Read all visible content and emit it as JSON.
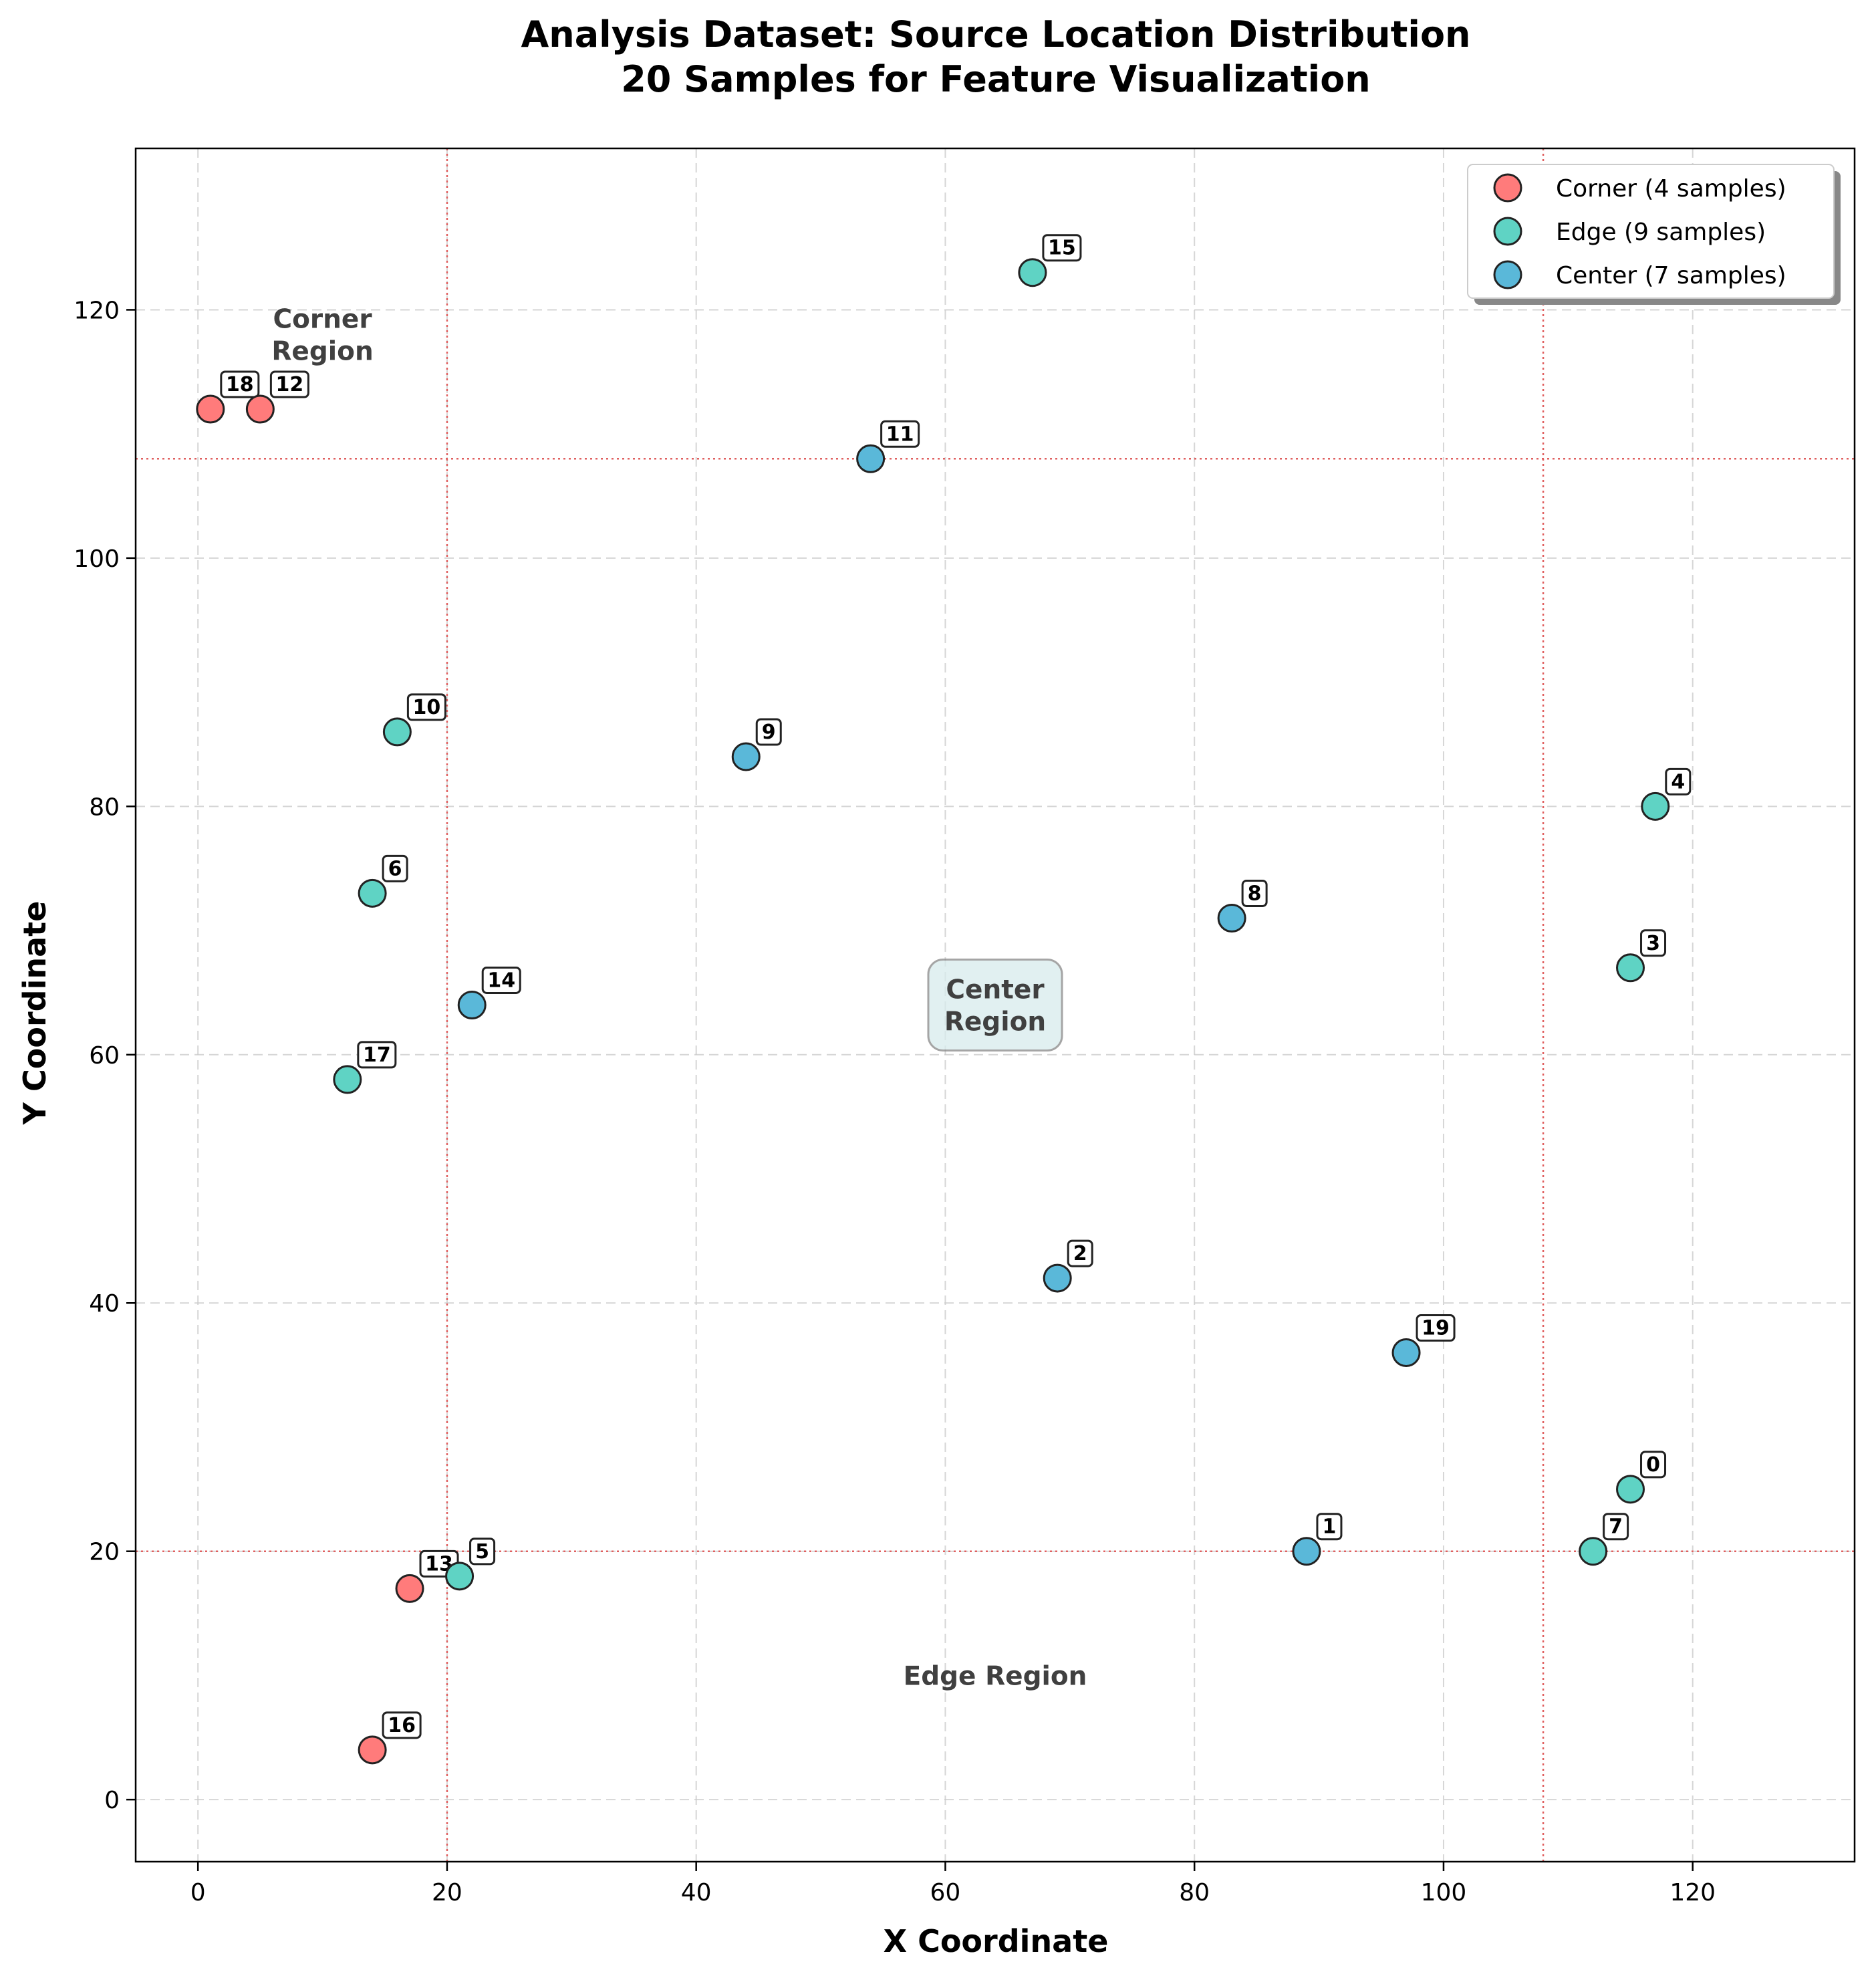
{
  "chart_data": {
    "type": "scatter",
    "title_line1": "Analysis Dataset: Source Location Distribution",
    "title_line2": "20 Samples for Feature Visualization",
    "xlabel": "X Coordinate",
    "ylabel": "Y Coordinate",
    "xlim": [
      -5,
      133
    ],
    "ylim": [
      -5,
      133
    ],
    "xticks": [
      0,
      20,
      40,
      60,
      80,
      100,
      120
    ],
    "yticks": [
      0,
      20,
      40,
      60,
      80,
      100,
      120
    ],
    "grid": true,
    "legend_position": "top-right",
    "boundaries": {
      "x": [
        20,
        108
      ],
      "y": [
        20,
        108
      ],
      "color": "#e06060"
    },
    "series": [
      {
        "name": "Corner (4 samples)",
        "color": "#ff7b7b",
        "points": [
          {
            "id": "18",
            "x": 1,
            "y": 112
          },
          {
            "id": "12",
            "x": 5,
            "y": 112
          },
          {
            "id": "13",
            "x": 17,
            "y": 17
          },
          {
            "id": "16",
            "x": 14,
            "y": 4
          }
        ]
      },
      {
        "name": "Edge (9 samples)",
        "color": "#5fd3c4",
        "points": [
          {
            "id": "15",
            "x": 67,
            "y": 123
          },
          {
            "id": "10",
            "x": 16,
            "y": 86
          },
          {
            "id": "4",
            "x": 117,
            "y": 80
          },
          {
            "id": "6",
            "x": 14,
            "y": 73
          },
          {
            "id": "3",
            "x": 115,
            "y": 67
          },
          {
            "id": "17",
            "x": 12,
            "y": 58
          },
          {
            "id": "0",
            "x": 115,
            "y": 25
          },
          {
            "id": "7",
            "x": 112,
            "y": 20
          },
          {
            "id": "5",
            "x": 21,
            "y": 18
          }
        ]
      },
      {
        "name": "Center (7 samples)",
        "color": "#5ab8d9",
        "points": [
          {
            "id": "11",
            "x": 54,
            "y": 108
          },
          {
            "id": "9",
            "x": 44,
            "y": 84
          },
          {
            "id": "8",
            "x": 83,
            "y": 71
          },
          {
            "id": "14",
            "x": 22,
            "y": 64
          },
          {
            "id": "2",
            "x": 69,
            "y": 42
          },
          {
            "id": "19",
            "x": 97,
            "y": 36
          },
          {
            "id": "1",
            "x": 89,
            "y": 20
          }
        ]
      }
    ],
    "region_labels": [
      {
        "lines": [
          "Corner",
          "Region"
        ],
        "x": 10,
        "y": 118,
        "boxed": false
      },
      {
        "lines": [
          "Center",
          "Region"
        ],
        "x": 64,
        "y": 64,
        "boxed": true
      },
      {
        "lines": [
          "Edge Region"
        ],
        "x": 64,
        "y": 10,
        "boxed": false
      }
    ]
  }
}
